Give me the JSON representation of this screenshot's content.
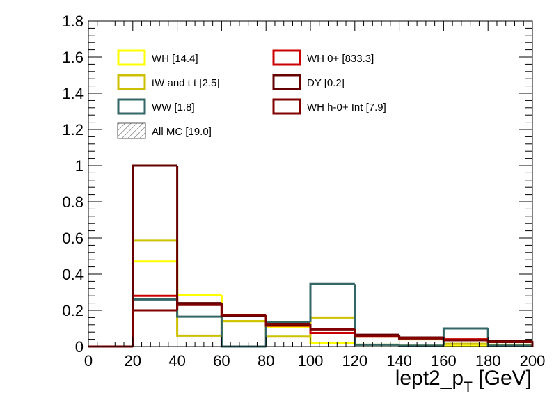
{
  "chart_data": {
    "type": "histogram",
    "xlabel": "lept2_p",
    "xlabel_sub": "T",
    "xlabel_unit": " [GeV]",
    "xlim": [
      0,
      200
    ],
    "ylim": [
      0,
      1.8
    ],
    "x_ticks": [
      "0",
      "20",
      "40",
      "60",
      "80",
      "100",
      "120",
      "140",
      "160",
      "180",
      "200"
    ],
    "y_ticks": [
      "0",
      "0.2",
      "0.4",
      "0.6",
      "0.8",
      "1",
      "1.2",
      "1.4",
      "1.6",
      "1.8"
    ],
    "bin_edges": [
      0,
      20,
      40,
      60,
      80,
      100,
      120,
      140,
      160,
      180,
      200
    ],
    "grid": false,
    "legend_position": "top-left",
    "series": [
      {
        "name": "WH [14.4]",
        "color": "#ffff00",
        "values": [
          0,
          0.47,
          0.285,
          0.14,
          0.11,
          0.02,
          0.01,
          0.005,
          0.003,
          0.002
        ]
      },
      {
        "name": "tW and t t [2.5]",
        "color": "#cdc000",
        "values": [
          0,
          0.585,
          0.06,
          0.14,
          0.055,
          0.16,
          0.055,
          0.04,
          0.015,
          0.01
        ]
      },
      {
        "name": "WW [1.8]",
        "color": "#336666",
        "values": [
          0,
          0.26,
          0.165,
          0,
          0.135,
          0.345,
          0.01,
          0.005,
          0.1,
          0.005
        ]
      },
      {
        "name": "WH 0+ [833.3]",
        "color": "#cc0000",
        "values": [
          0,
          0.28,
          0.235,
          0.17,
          0.115,
          0.075,
          0.055,
          0.045,
          0.04,
          0.025
        ]
      },
      {
        "name": "DY [0.2]",
        "color": "#660000",
        "values": [
          0,
          1.0,
          0.24,
          0.17,
          0.12,
          0.095,
          0.065,
          0.05,
          0.035,
          0.03
        ]
      },
      {
        "name": "WH h-0+ Int [7.9]",
        "color": "#800000",
        "values": [
          0,
          0.2,
          0.23,
          0.175,
          0.125,
          0.095,
          0.06,
          0.045,
          0.035,
          0.025
        ]
      }
    ]
  },
  "legend": {
    "entries": [
      {
        "label": "WH [14.4]",
        "color": "#ffff00",
        "style": "box"
      },
      {
        "label": "tW and t t [2.5]",
        "color": "#cdc000",
        "style": "box"
      },
      {
        "label": "WW [1.8]",
        "color": "#336666",
        "style": "box"
      },
      {
        "label": "All MC [19.0]",
        "color": "#555555",
        "style": "hatch"
      },
      {
        "label": "WH 0+ [833.3]",
        "color": "#cc0000",
        "style": "box"
      },
      {
        "label": "DY [0.2]",
        "color": "#660000",
        "style": "box"
      },
      {
        "label": "WH h-0+ Int [7.9]",
        "color": "#800000",
        "style": "box"
      }
    ]
  }
}
